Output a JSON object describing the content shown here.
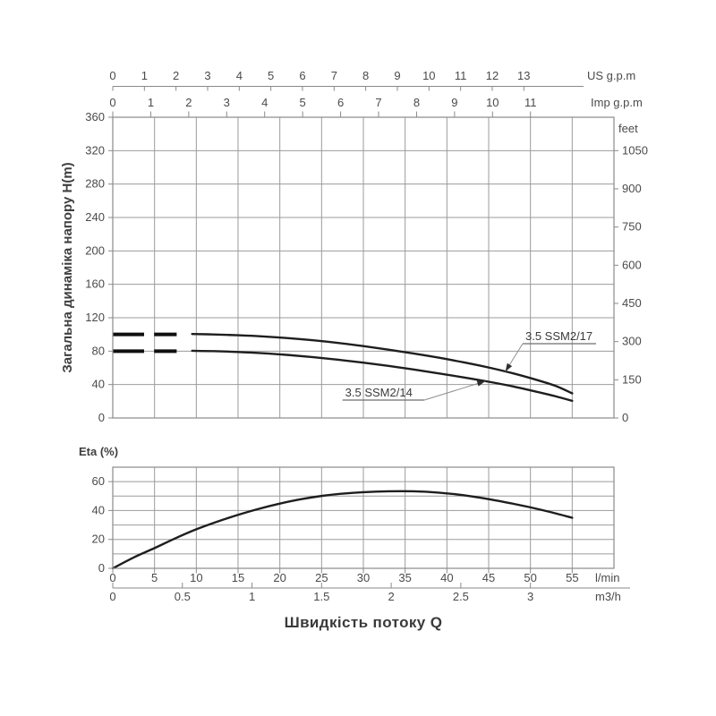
{
  "figure_title": "Швидкість потоку Q",
  "colors": {
    "background": "#ffffff",
    "text": "#4a4a4a",
    "grid": "#9b9b9b",
    "border": "#8a8a8a",
    "curve": "#1e1e1e",
    "dash": "#0f0f0f",
    "leader": "#8f8f8f",
    "label_text": "#3a3a3a",
    "arrow": "#2f2f2f"
  },
  "chart_data": [
    {
      "id": "head_chart",
      "type": "line",
      "ylabel": "Загальна динаміка напору H(m)",
      "x_unit": "l/min",
      "xlim_lpm": [
        0,
        60
      ],
      "x_grid_step_lpm": 5,
      "grid": true,
      "y_left": {
        "unit": "m",
        "min": 0,
        "max": 360,
        "tick_step": 40,
        "ticks": [
          0,
          40,
          80,
          120,
          160,
          200,
          240,
          280,
          320,
          360
        ]
      },
      "y_right": {
        "label": "feet",
        "ticks": [
          1050,
          900,
          750,
          600,
          450,
          300,
          150,
          0
        ],
        "meters_per_foot": 0.3048
      },
      "top_axes": [
        {
          "label": "US g.p.m",
          "lpm_per_unit": 3.785411784,
          "ticks": [
            0,
            1,
            2,
            3,
            4,
            5,
            6,
            7,
            8,
            9,
            10,
            11,
            12,
            13
          ]
        },
        {
          "label": "Imp g.p.m",
          "lpm_per_unit": 4.54609,
          "ticks": [
            0,
            1,
            2,
            3,
            4,
            5,
            6,
            7,
            8,
            9,
            10,
            11
          ]
        }
      ],
      "series": [
        {
          "name": "3.5 SSM2/17",
          "shutoff_head_m": 100,
          "shutoff_dash_segments_lpm": [
            [
              0,
              3.75
            ],
            [
              4.95,
              7.65
            ]
          ],
          "points": [
            [
              9.5,
              100.5
            ],
            [
              12,
              100
            ],
            [
              15,
              99
            ],
            [
              18,
              97.6
            ],
            [
              21,
              95.6
            ],
            [
              24,
              93
            ],
            [
              27,
              89.8
            ],
            [
              30,
              86
            ],
            [
              33,
              81.8
            ],
            [
              36,
              77.2
            ],
            [
              39,
              72.2
            ],
            [
              42,
              66.6
            ],
            [
              45,
              60.4
            ],
            [
              48,
              53.2
            ],
            [
              51,
              44.8
            ],
            [
              53,
              38.4
            ],
            [
              55,
              29.5
            ]
          ]
        },
        {
          "name": "3.5 SSM2/14",
          "shutoff_head_m": 80,
          "shutoff_dash_segments_lpm": [
            [
              0,
              3.75
            ],
            [
              4.95,
              7.65
            ]
          ],
          "points": [
            [
              9.5,
              80.4
            ],
            [
              12,
              80
            ],
            [
              15,
              79
            ],
            [
              18,
              77.5
            ],
            [
              21,
              75.4
            ],
            [
              24,
              72.8
            ],
            [
              27,
              69.7
            ],
            [
              30,
              66.2
            ],
            [
              33,
              62.3
            ],
            [
              36,
              58
            ],
            [
              39,
              53.4
            ],
            [
              42,
              48.6
            ],
            [
              45,
              43.4
            ],
            [
              48,
              37.6
            ],
            [
              51,
              30.8
            ],
            [
              53,
              26
            ],
            [
              55,
              20.5
            ]
          ]
        }
      ],
      "annotations": [
        {
          "text": "3.5 SSM2/17",
          "underline_from_lpm": 49.07,
          "underline_to_lpm": 57.86,
          "underline_h_m": 88.9,
          "leader_from": "start",
          "tip_lpm": 47.0,
          "tip_h_m": 55.6
        },
        {
          "text": "3.5 SSM2/14",
          "underline_from_lpm": 27.5,
          "underline_to_lpm": 37.3,
          "underline_h_m": 21.4,
          "leader_from": "end",
          "tip_lpm": 44.6,
          "tip_h_m": 44.1
        }
      ]
    },
    {
      "id": "eta_chart",
      "type": "line",
      "title": "Eta (%)",
      "grid": true,
      "y": {
        "min": 0,
        "max": 70,
        "grid_step": 10,
        "labeled_ticks": [
          0,
          20,
          40,
          60
        ]
      },
      "x_lpm": {
        "label": "l/min",
        "ticks": [
          0,
          5,
          10,
          15,
          20,
          25,
          30,
          35,
          40,
          45,
          50,
          55
        ]
      },
      "x_m3h": {
        "label": "m3/h",
        "ticks": [
          0,
          0.5,
          1,
          1.5,
          2,
          2.5,
          3
        ],
        "lpm_per_unit": 16.666667
      },
      "points": [
        [
          0,
          0
        ],
        [
          2.5,
          7.5
        ],
        [
          5,
          14
        ],
        [
          7.5,
          20.8
        ],
        [
          10,
          27
        ],
        [
          12.5,
          32.3
        ],
        [
          15,
          37
        ],
        [
          17.5,
          41.2
        ],
        [
          20,
          44.8
        ],
        [
          22.5,
          47.8
        ],
        [
          25,
          50.1
        ],
        [
          27.5,
          51.7
        ],
        [
          30,
          52.7
        ],
        [
          33,
          53.3
        ],
        [
          36,
          53.3
        ],
        [
          39,
          52.4
        ],
        [
          42,
          50.6
        ],
        [
          45,
          47.9
        ],
        [
          48,
          44.6
        ],
        [
          50,
          42.2
        ],
        [
          52.5,
          38.8
        ],
        [
          55,
          35
        ]
      ]
    }
  ]
}
